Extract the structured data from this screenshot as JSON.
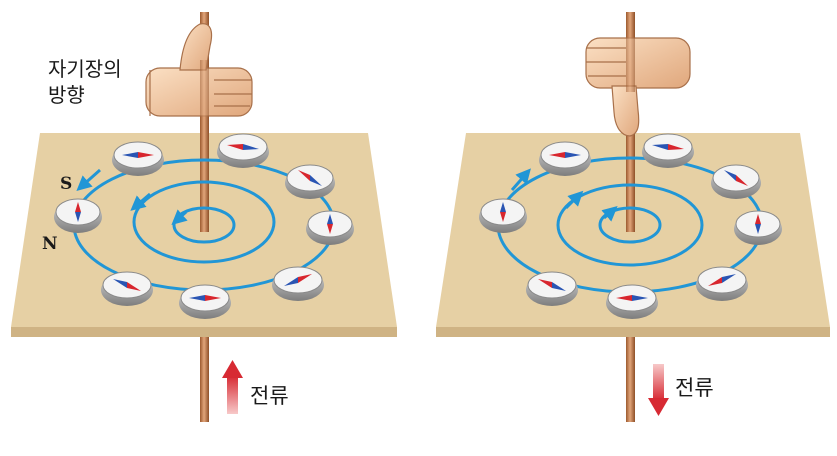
{
  "labels": {
    "field_direction_line1": "자기장의",
    "field_direction_line2": "방향",
    "south_pole": "S",
    "north_pole": "N",
    "current_left": "전류",
    "current_right": "전류"
  },
  "panels": [
    {
      "name": "left",
      "current_direction": "up",
      "field_direction": "counterclockwise",
      "hand": "thumb-up"
    },
    {
      "name": "right",
      "current_direction": "down",
      "field_direction": "clockwise",
      "hand": "thumb-down"
    }
  ],
  "colors": {
    "board_top": "#e6d0a4",
    "board_edge": "#cfb384",
    "field_line": "#2196d6",
    "wire": "#c98454",
    "needle_north": "#d8262e",
    "needle_south": "#2a55b3",
    "current_arrow": "#d72a33",
    "skin": "#f3c8a0"
  }
}
